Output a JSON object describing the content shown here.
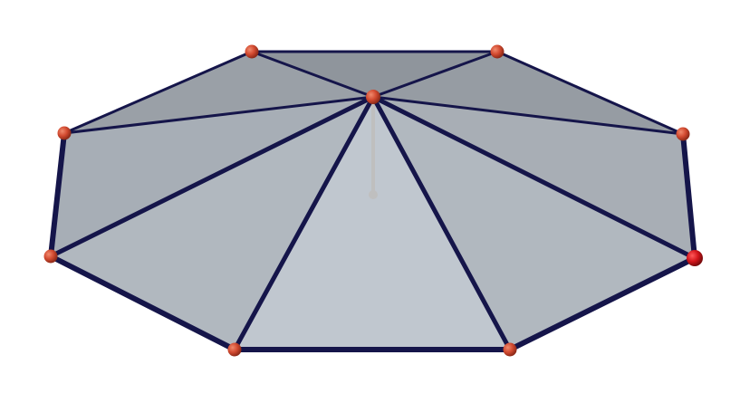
{
  "figure": {
    "kind": "octagonal pyramid viewed from above",
    "base_vertex_count": 8,
    "colors": {
      "background": "#ffffff",
      "edge": "#15154a",
      "vertex": "#c8402b",
      "vertex_highlight": "#d4151b",
      "face_light": "#c3cad2",
      "face_mid": "#a9b1b9",
      "face_dark": "#8b9097",
      "axis": "#bfbfbf"
    }
  }
}
